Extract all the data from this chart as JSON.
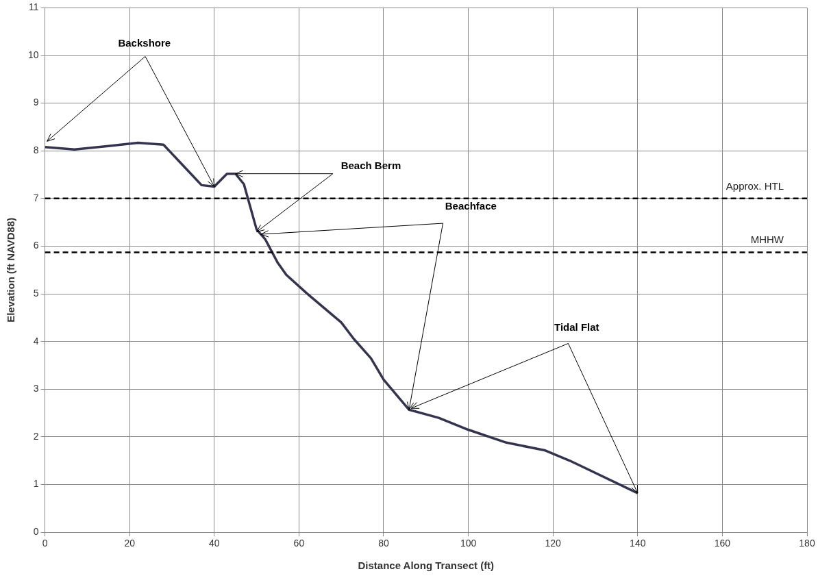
{
  "chart_data": {
    "type": "line",
    "xlabel": "Distance Along Transect (ft)",
    "ylabel": "Elevation (ft NAVD88)",
    "x": [
      0,
      7,
      15,
      22,
      28,
      37,
      40,
      43,
      45,
      47,
      50,
      52,
      55,
      57,
      62,
      70,
      73,
      77,
      80,
      86,
      93,
      100,
      109,
      118,
      124,
      140
    ],
    "series": [
      {
        "color": "#34344e",
        "values": [
          8.08,
          8.03,
          8.1,
          8.17,
          8.13,
          7.28,
          7.25,
          7.52,
          7.52,
          7.3,
          6.35,
          6.15,
          5.65,
          5.4,
          5.0,
          4.4,
          4.05,
          3.65,
          3.2,
          2.57,
          2.4,
          2.15,
          1.88,
          1.72,
          1.5,
          0.82
        ]
      }
    ],
    "xlim": [
      0,
      180
    ],
    "xticks": [
      0,
      20,
      40,
      60,
      80,
      100,
      120,
      140,
      160,
      180
    ],
    "ylim": [
      0,
      11
    ],
    "yticks": [
      0,
      1,
      2,
      3,
      4,
      5,
      6,
      7,
      8,
      9,
      10,
      11
    ],
    "grid": true,
    "legend": false,
    "marker": "none",
    "line_style": "solid",
    "ref_lines": [
      {
        "axis": "y",
        "value": 7,
        "label": "Approx. HTL",
        "color": "#000000",
        "line_style": "dashed"
      },
      {
        "axis": "y",
        "value": 5.87,
        "label": "MHHW",
        "color": "#000000",
        "line_style": "dashed"
      }
    ],
    "annotations": [
      {
        "text": "Backshore",
        "x": 40,
        "y": 7.25
      },
      {
        "text": "Beach Berm",
        "x": 45,
        "y": 7.52
      },
      {
        "text": "Beachface",
        "x": 86,
        "y": 2.57
      },
      {
        "text": "Tidal Flat",
        "x": 140,
        "y": 0.82
      }
    ]
  }
}
